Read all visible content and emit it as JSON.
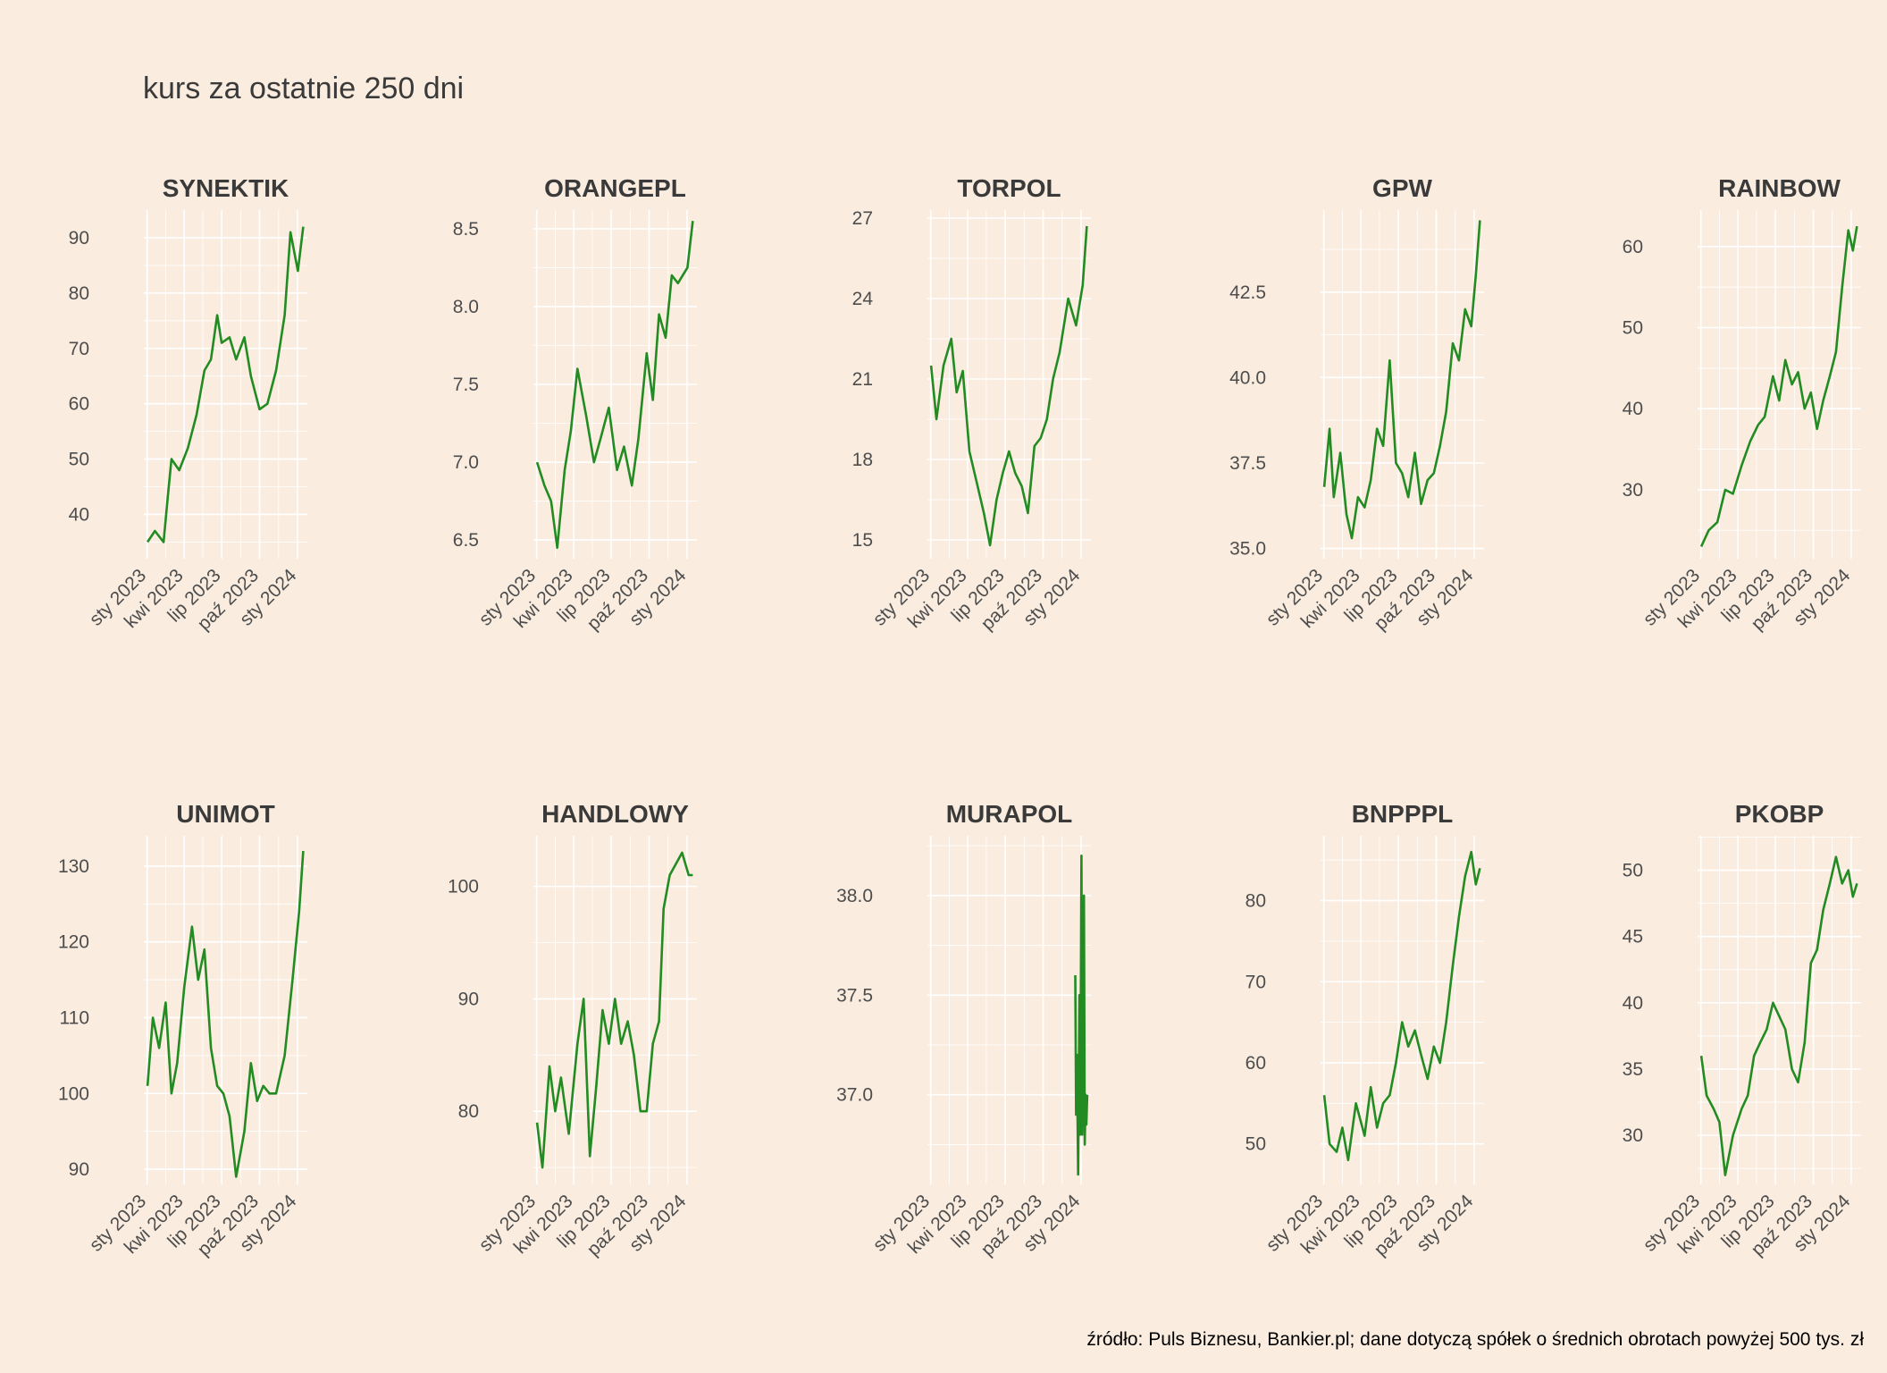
{
  "title": "kurs za ostatnie 250 dni",
  "caption": "źródło: Puls Biznesu, Bankier.pl; dane dotyczą spółek o średnich obrotach powyżej 500 tys. zł",
  "colors": {
    "background": "#FAEDE0",
    "line": "#228B22",
    "grid": "#FFFFFF",
    "text": "#3A3A3A"
  },
  "chart_data": [
    {
      "type": "line",
      "title": "SYNEKTIK",
      "x_ticks": [
        "sty 2023",
        "kwi 2023",
        "lip 2023",
        "paź 2023",
        "sty 2024"
      ],
      "y_ticks": [
        "40",
        "50",
        "60",
        "70",
        "80",
        "90"
      ],
      "ylim": [
        32,
        95
      ],
      "x": [
        "2023-01-02",
        "2023-01-20",
        "2023-02-10",
        "2023-02-20",
        "2023-03-01",
        "2023-03-20",
        "2023-04-10",
        "2023-05-01",
        "2023-05-20",
        "2023-06-05",
        "2023-06-20",
        "2023-07-01",
        "2023-07-20",
        "2023-08-05",
        "2023-08-25",
        "2023-09-10",
        "2023-10-01",
        "2023-10-20",
        "2023-11-10",
        "2023-12-01",
        "2023-12-15",
        "2024-01-02",
        "2024-01-15"
      ],
      "series": [
        {
          "values": [
            35,
            37,
            35,
            43,
            50,
            48,
            52,
            58,
            66,
            68,
            76,
            71,
            72,
            68,
            72,
            65,
            59,
            60,
            66,
            76,
            91,
            84,
            92
          ]
        }
      ]
    },
    {
      "type": "line",
      "title": "ORANGEPL",
      "x_ticks": [
        "sty 2023",
        "kwi 2023",
        "lip 2023",
        "paź 2023",
        "sty 2024"
      ],
      "y_ticks": [
        "6.5",
        "7.0",
        "7.5",
        "8.0",
        "8.5"
      ],
      "ylim": [
        6.38,
        8.62
      ],
      "x": [
        "2023-01-02",
        "2023-01-20",
        "2023-02-05",
        "2023-02-20",
        "2023-03-10",
        "2023-03-25",
        "2023-04-10",
        "2023-05-01",
        "2023-05-20",
        "2023-06-05",
        "2023-06-25",
        "2023-07-15",
        "2023-08-01",
        "2023-08-20",
        "2023-09-05",
        "2023-09-25",
        "2023-10-10",
        "2023-10-25",
        "2023-11-10",
        "2023-11-25",
        "2023-12-10",
        "2024-01-02",
        "2024-01-15"
      ],
      "series": [
        {
          "values": [
            7.0,
            6.85,
            6.75,
            6.45,
            6.95,
            7.2,
            7.6,
            7.3,
            7.0,
            7.15,
            7.35,
            6.95,
            7.1,
            6.85,
            7.15,
            7.7,
            7.4,
            7.95,
            7.8,
            8.2,
            8.15,
            8.25,
            8.55
          ]
        }
      ]
    },
    {
      "type": "line",
      "title": "TORPOL",
      "x_ticks": [
        "sty 2023",
        "kwi 2023",
        "lip 2023",
        "paź 2023",
        "sty 2024"
      ],
      "y_ticks": [
        "15",
        "18",
        "21",
        "24",
        "27"
      ],
      "ylim": [
        14.3,
        27.3
      ],
      "x": [
        "2023-01-02",
        "2023-01-15",
        "2023-02-01",
        "2023-02-20",
        "2023-03-05",
        "2023-03-20",
        "2023-04-05",
        "2023-04-25",
        "2023-05-10",
        "2023-05-25",
        "2023-06-10",
        "2023-06-25",
        "2023-07-10",
        "2023-07-25",
        "2023-08-10",
        "2023-08-25",
        "2023-09-10",
        "2023-09-25",
        "2023-10-10",
        "2023-10-25",
        "2023-11-10",
        "2023-12-01",
        "2023-12-20",
        "2024-01-05",
        "2024-01-15"
      ],
      "series": [
        {
          "values": [
            21.5,
            19.5,
            21.5,
            22.5,
            20.5,
            21.3,
            18.3,
            17,
            16,
            14.8,
            16.5,
            17.5,
            18.3,
            17.5,
            17,
            16,
            18.5,
            18.8,
            19.5,
            21,
            22,
            24,
            23,
            24.5,
            26.7
          ]
        }
      ]
    },
    {
      "type": "line",
      "title": "GPW",
      "x_ticks": [
        "sty 2023",
        "kwi 2023",
        "lip 2023",
        "paź 2023",
        "sty 2024"
      ],
      "y_ticks": [
        "35.0",
        "37.5",
        "40.0",
        "42.5"
      ],
      "ylim": [
        34.7,
        44.9
      ],
      "x": [
        "2023-01-02",
        "2023-01-15",
        "2023-01-25",
        "2023-02-10",
        "2023-02-25",
        "2023-03-10",
        "2023-03-25",
        "2023-04-10",
        "2023-04-25",
        "2023-05-10",
        "2023-05-25",
        "2023-06-10",
        "2023-06-25",
        "2023-07-10",
        "2023-07-25",
        "2023-08-10",
        "2023-08-25",
        "2023-09-10",
        "2023-09-25",
        "2023-10-10",
        "2023-10-25",
        "2023-11-10",
        "2023-11-25",
        "2023-12-10",
        "2023-12-25",
        "2024-01-05",
        "2024-01-15"
      ],
      "series": [
        {
          "values": [
            36.8,
            38.5,
            36.5,
            37.8,
            36,
            35.3,
            36.5,
            36.2,
            37,
            38.5,
            38,
            40.5,
            37.5,
            37.2,
            36.5,
            37.8,
            36.3,
            37,
            37.2,
            38,
            39,
            41,
            40.5,
            42,
            41.5,
            43,
            44.6
          ]
        }
      ]
    },
    {
      "type": "line",
      "title": "RAINBOW",
      "x_ticks": [
        "sty 2023",
        "kwi 2023",
        "lip 2023",
        "paź 2023",
        "sty 2024"
      ],
      "y_ticks": [
        "30",
        "40",
        "50",
        "60"
      ],
      "ylim": [
        21.5,
        64.5
      ],
      "x": [
        "2023-01-02",
        "2023-01-20",
        "2023-02-10",
        "2023-03-01",
        "2023-03-20",
        "2023-04-10",
        "2023-05-01",
        "2023-05-20",
        "2023-06-05",
        "2023-06-25",
        "2023-07-10",
        "2023-07-25",
        "2023-08-10",
        "2023-08-25",
        "2023-09-10",
        "2023-09-25",
        "2023-10-10",
        "2023-10-25",
        "2023-11-10",
        "2023-11-25",
        "2023-12-10",
        "2023-12-25",
        "2024-01-05",
        "2024-01-15"
      ],
      "series": [
        {
          "values": [
            23,
            25,
            26,
            30,
            29.5,
            33,
            36,
            38,
            39,
            44,
            41,
            46,
            43,
            44.5,
            40,
            42,
            37.5,
            41,
            44,
            47,
            55,
            62,
            59.5,
            62.5
          ]
        }
      ]
    },
    {
      "type": "line",
      "title": "UNIMOT",
      "x_ticks": [
        "sty 2023",
        "kwi 2023",
        "lip 2023",
        "paź 2023",
        "sty 2024"
      ],
      "y_ticks": [
        "90",
        "100",
        "110",
        "120",
        "130"
      ],
      "ylim": [
        88,
        134
      ],
      "x": [
        "2023-01-02",
        "2023-01-15",
        "2023-01-30",
        "2023-02-15",
        "2023-03-01",
        "2023-03-15",
        "2023-04-01",
        "2023-04-20",
        "2023-05-05",
        "2023-05-20",
        "2023-06-05",
        "2023-06-20",
        "2023-07-05",
        "2023-07-20",
        "2023-08-05",
        "2023-08-25",
        "2023-09-10",
        "2023-09-25",
        "2023-10-10",
        "2023-10-25",
        "2023-11-10",
        "2023-12-01",
        "2023-12-20",
        "2024-01-05",
        "2024-01-15"
      ],
      "series": [
        {
          "values": [
            101,
            110,
            106,
            112,
            100,
            104,
            114,
            122,
            115,
            119,
            106,
            101,
            100,
            97,
            89,
            95,
            104,
            99,
            101,
            100,
            100,
            105,
            115,
            124,
            132
          ]
        }
      ]
    },
    {
      "type": "line",
      "title": "HANDLOWY",
      "x_ticks": [
        "sty 2023",
        "kwi 2023",
        "lip 2023",
        "paź 2023",
        "sty 2024"
      ],
      "y_ticks": [
        "80",
        "90",
        "100"
      ],
      "ylim": [
        73.5,
        104.5
      ],
      "x": [
        "2023-01-02",
        "2023-01-15",
        "2023-02-01",
        "2023-02-15",
        "2023-03-01",
        "2023-03-20",
        "2023-04-10",
        "2023-04-25",
        "2023-05-10",
        "2023-05-25",
        "2023-06-10",
        "2023-06-25",
        "2023-07-10",
        "2023-07-25",
        "2023-08-10",
        "2023-08-25",
        "2023-09-10",
        "2023-09-25",
        "2023-10-10",
        "2023-10-25",
        "2023-11-05",
        "2023-11-20",
        "2023-12-05",
        "2023-12-20",
        "2024-01-05",
        "2024-01-15"
      ],
      "series": [
        {
          "values": [
            79,
            75,
            84,
            80,
            83,
            78,
            86,
            90,
            76,
            82,
            89,
            86,
            90,
            86,
            88,
            85,
            80,
            80,
            86,
            88,
            98,
            101,
            102,
            103,
            101,
            101
          ]
        }
      ]
    },
    {
      "type": "line",
      "title": "MURAPOL",
      "x_ticks": [
        "sty 2023",
        "kwi 2023",
        "lip 2023",
        "paź 2023",
        "sty 2024"
      ],
      "y_ticks": [
        "37.0",
        "37.5",
        "38.0"
      ],
      "ylim": [
        36.55,
        38.3
      ],
      "x": [
        "2023-12-18",
        "2023-12-20",
        "2023-12-22",
        "2023-12-25",
        "2023-12-28",
        "2023-12-30",
        "2024-01-02",
        "2024-01-04",
        "2024-01-06",
        "2024-01-08",
        "2024-01-10",
        "2024-01-12",
        "2024-01-14",
        "2024-01-16"
      ],
      "series": [
        {
          "values": [
            37.6,
            36.9,
            37.2,
            36.6,
            37.5,
            36.8,
            38.2,
            36.8,
            37.1,
            38.0,
            36.75,
            37.0,
            36.85,
            37.0
          ]
        }
      ]
    },
    {
      "type": "line",
      "title": "BNPPPL",
      "x_ticks": [
        "sty 2023",
        "kwi 2023",
        "lip 2023",
        "paź 2023",
        "sty 2024"
      ],
      "y_ticks": [
        "50",
        "60",
        "70",
        "80"
      ],
      "ylim": [
        45,
        88
      ],
      "x": [
        "2023-01-02",
        "2023-01-15",
        "2023-02-01",
        "2023-02-15",
        "2023-03-01",
        "2023-03-20",
        "2023-04-10",
        "2023-04-25",
        "2023-05-10",
        "2023-05-25",
        "2023-06-10",
        "2023-06-25",
        "2023-07-10",
        "2023-07-25",
        "2023-08-10",
        "2023-08-25",
        "2023-09-10",
        "2023-09-25",
        "2023-10-10",
        "2023-10-25",
        "2023-11-10",
        "2023-11-25",
        "2023-12-10",
        "2023-12-25",
        "2024-01-05",
        "2024-01-15"
      ],
      "series": [
        {
          "values": [
            56,
            50,
            49,
            52,
            48,
            55,
            51,
            57,
            52,
            55,
            56,
            60,
            65,
            62,
            64,
            61,
            58,
            62,
            60,
            65,
            72,
            78,
            83,
            86,
            82,
            84
          ]
        }
      ]
    },
    {
      "type": "line",
      "title": "PKOBP",
      "x_ticks": [
        "sty 2023",
        "kwi 2023",
        "lip 2023",
        "paź 2023",
        "sty 2024"
      ],
      "y_ticks": [
        "30",
        "35",
        "40",
        "45",
        "50"
      ],
      "ylim": [
        26.3,
        52.6
      ],
      "x": [
        "2023-01-02",
        "2023-01-15",
        "2023-02-01",
        "2023-02-15",
        "2023-03-01",
        "2023-03-20",
        "2023-04-10",
        "2023-04-25",
        "2023-05-10",
        "2023-05-25",
        "2023-06-10",
        "2023-06-25",
        "2023-07-10",
        "2023-07-25",
        "2023-08-10",
        "2023-08-25",
        "2023-09-10",
        "2023-09-25",
        "2023-10-10",
        "2023-10-25",
        "2023-11-10",
        "2023-11-25",
        "2023-12-10",
        "2023-12-25",
        "2024-01-05",
        "2024-01-15"
      ],
      "series": [
        {
          "values": [
            36,
            33,
            32,
            31,
            27,
            30,
            32,
            33,
            36,
            37,
            38,
            40,
            39,
            38,
            35,
            34,
            37,
            43,
            44,
            47,
            49,
            51,
            49,
            50,
            48,
            49
          ]
        }
      ]
    }
  ]
}
